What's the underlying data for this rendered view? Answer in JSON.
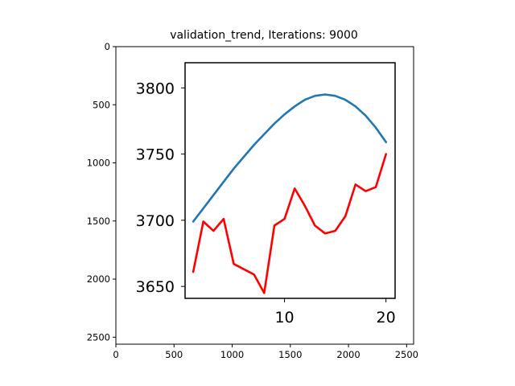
{
  "chart_data": {
    "type": "line",
    "title": "validation_trend, Iterations: 9000",
    "outer_axes": {
      "x_ticks": [
        "0",
        "500",
        "1000",
        "1500",
        "2000",
        "2500"
      ],
      "y_ticks": [
        "0",
        "500",
        "1000",
        "1500",
        "2000",
        "2500"
      ],
      "xlim": [
        0,
        2560
      ],
      "ylim_inverted": [
        2560,
        0
      ]
    },
    "inset_axes": {
      "x_ticks": [
        "10",
        "20"
      ],
      "y_ticks": [
        "3800",
        "3750",
        "3700",
        "3650"
      ],
      "xlim": [
        0.2,
        20.9
      ],
      "ylim": [
        3641,
        3819
      ]
    },
    "series": [
      {
        "color": "#1f77b4",
        "x": [
          1,
          2,
          3,
          4,
          5,
          6,
          7,
          8,
          9,
          10,
          11,
          12,
          13,
          14,
          15,
          16,
          17,
          18,
          19,
          20
        ],
        "values": [
          3699,
          3709,
          3719,
          3729,
          3739,
          3748,
          3757,
          3765,
          3773,
          3780,
          3786,
          3791,
          3794,
          3795,
          3794,
          3791,
          3786,
          3779,
          3770,
          3759
        ]
      },
      {
        "color": "#ff0000",
        "x": [
          1,
          2,
          3,
          4,
          5,
          6,
          7,
          8,
          9,
          10,
          11,
          12,
          13,
          14,
          15,
          16,
          17,
          18,
          19,
          20
        ],
        "values": [
          3661,
          3699,
          3692,
          3701,
          3667,
          3663,
          3659,
          3645,
          3696,
          3701,
          3724,
          3711,
          3696,
          3690,
          3692,
          3703,
          3727,
          3722,
          3725,
          3750
        ]
      }
    ]
  }
}
